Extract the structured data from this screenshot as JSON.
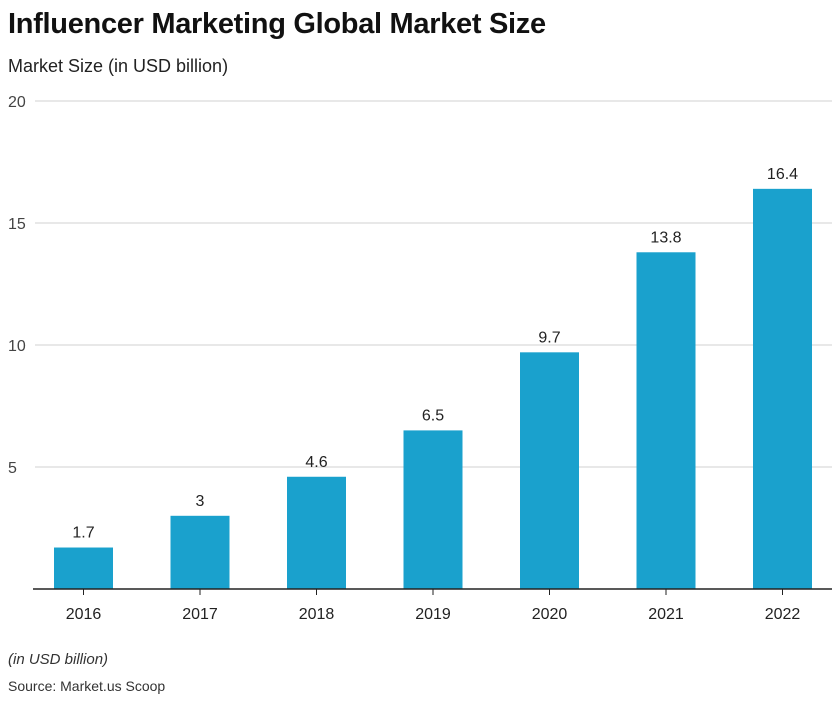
{
  "chart_data": {
    "type": "bar",
    "title": "Influencer Marketing Global Market Size",
    "subtitle": "Market Size (in USD billion)",
    "categories": [
      "2016",
      "2017",
      "2018",
      "2019",
      "2020",
      "2021",
      "2022"
    ],
    "values": [
      1.7,
      3,
      4.6,
      6.5,
      9.7,
      13.8,
      16.4
    ],
    "value_labels": [
      "1.7",
      "3",
      "4.6",
      "6.5",
      "9.7",
      "13.8",
      "16.4"
    ],
    "ylim": [
      0,
      20
    ],
    "yticks": [
      5,
      10,
      15,
      20
    ],
    "grid": true,
    "bar_color": "#1aa1cd",
    "note": "(in USD billion)",
    "source": "Source: Market.us Scoop"
  }
}
